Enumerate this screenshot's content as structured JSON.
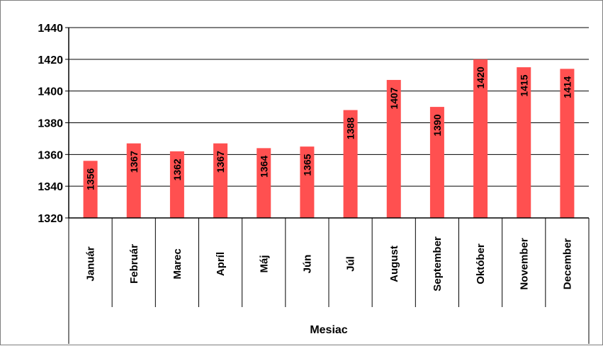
{
  "chart_data": {
    "type": "bar",
    "categories": [
      "Január",
      "Február",
      "Marec",
      "Apríl",
      "Máj",
      "Jún",
      "Júl",
      "August",
      "September",
      "Október",
      "November",
      "December"
    ],
    "values": [
      1356,
      1367,
      1362,
      1367,
      1364,
      1365,
      1388,
      1407,
      1390,
      1420,
      1415,
      1414
    ],
    "xlabel": "Mesiac",
    "ylabel": "",
    "ylim": [
      1320,
      1440
    ],
    "yticks": [
      1320,
      1340,
      1360,
      1380,
      1400,
      1420,
      1440
    ],
    "grid": true,
    "data_labels": true,
    "bar_color": "#ff5050"
  }
}
